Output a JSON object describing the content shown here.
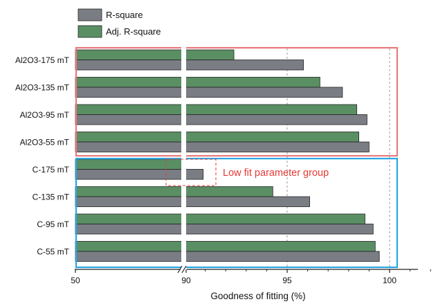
{
  "chart_data": {
    "type": "bar",
    "orientation": "horizontal",
    "categories": [
      "Al2O3-175 mT",
      "Al2O3-135 mT",
      "Al2O3-95 mT",
      "Al2O3-55 mT",
      "C-175 mT",
      "C-135 mT",
      "C-95 mT",
      "C-55 mT"
    ],
    "series": [
      {
        "name": "Adj. R-square",
        "color": "#5a8f64",
        "values": [
          92.4,
          96.6,
          98.4,
          98.5,
          89.8,
          94.3,
          98.8,
          99.3
        ]
      },
      {
        "name": "R-square",
        "color": "#7a7d83",
        "values": [
          95.8,
          97.7,
          98.9,
          99.0,
          90.9,
          96.1,
          99.2,
          99.5
        ]
      }
    ],
    "xlabel": "Goodness of fitting (%)",
    "ylabel": "",
    "x_axis_break": {
      "from": 50,
      "to": 90,
      "tick_labels": [
        "50",
        "90"
      ]
    },
    "xlim": [
      50,
      102.3
    ],
    "xticks": [
      95,
      100
    ],
    "xtick_labels": [
      "95",
      "100"
    ],
    "reference_lines": [
      95,
      100
    ],
    "legend": {
      "placement": "top-left",
      "entries": [
        "R-square",
        "Adj. R-square"
      ]
    },
    "groups": [
      {
        "members": [
          "Al2O3-175 mT",
          "Al2O3-135 mT",
          "Al2O3-95 mT",
          "Al2O3-55 mT"
        ],
        "box_color": "#e8787c"
      },
      {
        "members": [
          "C-175 mT",
          "C-135 mT",
          "C-95 mT",
          "C-55 mT"
        ],
        "box_color": "#2aa6e2"
      }
    ],
    "annotations": [
      {
        "text": "Low fit parameter group",
        "color": "#e53935",
        "target": "C-175 mT"
      }
    ]
  }
}
